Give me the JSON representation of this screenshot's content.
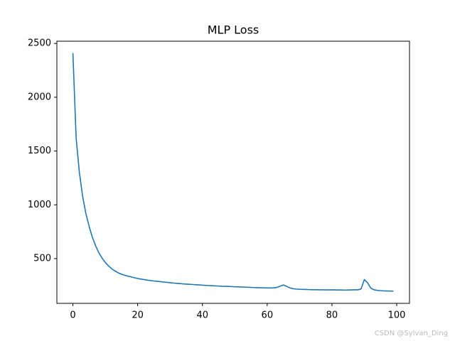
{
  "chart_data": {
    "type": "line",
    "title": "MLP Loss",
    "x": [
      0,
      1,
      2,
      3,
      4,
      5,
      6,
      7,
      8,
      9,
      10,
      11,
      12,
      13,
      14,
      15,
      16,
      17,
      18,
      19,
      20,
      21,
      22,
      23,
      24,
      25,
      26,
      27,
      28,
      29,
      30,
      31,
      32,
      33,
      34,
      35,
      36,
      37,
      38,
      39,
      40,
      41,
      42,
      43,
      44,
      45,
      46,
      47,
      48,
      49,
      50,
      51,
      52,
      53,
      54,
      55,
      56,
      57,
      58,
      59,
      60,
      61,
      62,
      63,
      64,
      65,
      66,
      67,
      68,
      69,
      70,
      71,
      72,
      73,
      74,
      75,
      76,
      77,
      78,
      79,
      80,
      81,
      82,
      83,
      84,
      85,
      86,
      87,
      88,
      89,
      90,
      91,
      92,
      93,
      94,
      95,
      96,
      97,
      98,
      99
    ],
    "series": [
      {
        "color": "#1f77b4",
        "values": [
          2410,
          1620,
          1300,
          1080,
          920,
          800,
          700,
          620,
          555,
          505,
          465,
          432,
          405,
          385,
          368,
          355,
          345,
          337,
          330,
          322,
          315,
          310,
          305,
          300,
          296,
          292,
          289,
          286,
          282,
          279,
          276,
          273,
          270,
          268,
          265,
          263,
          261,
          259,
          257,
          255,
          253,
          251,
          250,
          248,
          246,
          245,
          243,
          242,
          241,
          240,
          238,
          237,
          236,
          235,
          234,
          232,
          231,
          230,
          229,
          228,
          227,
          227,
          228,
          232,
          243,
          255,
          242,
          228,
          220,
          217,
          215,
          214,
          213,
          212,
          211,
          211,
          210,
          210,
          209,
          209,
          210,
          209,
          208,
          208,
          207,
          208,
          209,
          210,
          210,
          218,
          305,
          275,
          225,
          210,
          205,
          202,
          200,
          199,
          198,
          198
        ]
      }
    ],
    "xlim": [
      -4.95,
      103.95
    ],
    "ylim": [
      84,
      2521
    ],
    "xticks": [
      0,
      20,
      40,
      60,
      80,
      100
    ],
    "yticks": [
      500,
      1000,
      1500,
      2000,
      2500
    ],
    "grid": false,
    "watermark": "CSDN @Sylvan_Ding"
  }
}
